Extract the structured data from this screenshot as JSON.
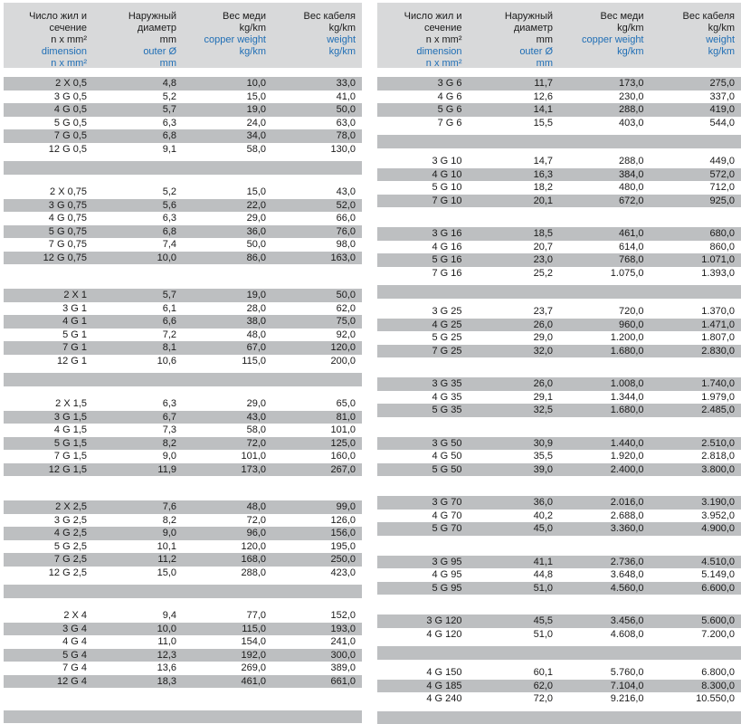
{
  "colors": {
    "row_band": "#bdbfc1",
    "header_band": "#d8d9da",
    "accent_blue": "#1f6eb5",
    "text_black": "#1a1a1a"
  },
  "header": {
    "columns": [
      {
        "ru": [
          "Число жил и",
          "сечение",
          "n x mm²"
        ],
        "en": [
          "dimension",
          "n x mm²"
        ]
      },
      {
        "ru": [
          "Наружный",
          "диаметр",
          "mm"
        ],
        "en": [
          "outer Ø",
          "mm"
        ]
      },
      {
        "ru": [
          "Вес меди",
          "kg/km"
        ],
        "en": [
          "copper weight",
          "kg/km"
        ]
      },
      {
        "ru": [
          "Вес кабеля",
          "kg/km"
        ],
        "en": [
          "weight",
          "kg/km"
        ]
      }
    ]
  },
  "column_names": [
    "dimension-cell",
    "outer-diameter-cell",
    "copper-weight-cell",
    "cable-weight-cell"
  ],
  "tables": [
    {
      "groups": [
        [
          [
            "2 X 0,5",
            "4,8",
            "10,0",
            "33,0"
          ],
          [
            "3 G 0,5",
            "5,2",
            "15,0",
            "41,0"
          ],
          [
            "4 G 0,5",
            "5,7",
            "19,0",
            "50,0"
          ],
          [
            "5 G 0,5",
            "6,3",
            "24,0",
            "63,0"
          ],
          [
            "7 G 0,5",
            "6,8",
            "34,0",
            "78,0"
          ],
          [
            "12 G 0,5",
            "9,1",
            "58,0",
            "130,0"
          ]
        ],
        [
          [
            "2 X 0,75",
            "5,2",
            "15,0",
            "43,0"
          ],
          [
            "3 G 0,75",
            "5,6",
            "22,0",
            "52,0"
          ],
          [
            "4 G 0,75",
            "6,3",
            "29,0",
            "66,0"
          ],
          [
            "5 G 0,75",
            "6,8",
            "36,0",
            "76,0"
          ],
          [
            "7 G 0,75",
            "7,4",
            "50,0",
            "98,0"
          ],
          [
            "12 G 0,75",
            "10,0",
            "86,0",
            "163,0"
          ]
        ],
        [
          [
            "2 X 1",
            "5,7",
            "19,0",
            "50,0"
          ],
          [
            "3 G 1",
            "6,1",
            "28,0",
            "62,0"
          ],
          [
            "4 G 1",
            "6,6",
            "38,0",
            "75,0"
          ],
          [
            "5 G 1",
            "7,2",
            "48,0",
            "92,0"
          ],
          [
            "7 G 1",
            "8,1",
            "67,0",
            "120,0"
          ],
          [
            "12 G 1",
            "10,6",
            "115,0",
            "200,0"
          ]
        ],
        [
          [
            "2 X 1,5",
            "6,3",
            "29,0",
            "65,0"
          ],
          [
            "3 G 1,5",
            "6,7",
            "43,0",
            "81,0"
          ],
          [
            "4 G 1,5",
            "7,3",
            "58,0",
            "101,0"
          ],
          [
            "5 G 1,5",
            "8,2",
            "72,0",
            "125,0"
          ],
          [
            "7 G 1,5",
            "9,0",
            "101,0",
            "160,0"
          ],
          [
            "12 G 1,5",
            "11,9",
            "173,0",
            "267,0"
          ]
        ],
        [
          [
            "2 X 2,5",
            "7,6",
            "48,0",
            "99,0"
          ],
          [
            "3 G 2,5",
            "8,2",
            "72,0",
            "126,0"
          ],
          [
            "4 G 2,5",
            "9,0",
            "96,0",
            "156,0"
          ],
          [
            "5 G 2,5",
            "10,1",
            "120,0",
            "195,0"
          ],
          [
            "7 G 2,5",
            "11,2",
            "168,0",
            "250,0"
          ],
          [
            "12 G 2,5",
            "15,0",
            "288,0",
            "423,0"
          ]
        ],
        [
          [
            "2 X 4",
            "9,4",
            "77,0",
            "152,0"
          ],
          [
            "3 G 4",
            "10,0",
            "115,0",
            "193,0"
          ],
          [
            "4 G 4",
            "11,0",
            "154,0",
            "241,0"
          ],
          [
            "5 G 4",
            "12,3",
            "192,0",
            "300,0"
          ],
          [
            "7 G 4",
            "13,6",
            "269,0",
            "389,0"
          ],
          [
            "12 G 4",
            "18,3",
            "461,0",
            "661,0"
          ]
        ]
      ]
    },
    {
      "groups": [
        [
          [
            "3 G 6",
            "11,7",
            "173,0",
            "275,0"
          ],
          [
            "4 G 6",
            "12,6",
            "230,0",
            "337,0"
          ],
          [
            "5 G 6",
            "14,1",
            "288,0",
            "419,0"
          ],
          [
            "7 G 6",
            "15,5",
            "403,0",
            "544,0"
          ]
        ],
        [
          [
            "3 G 10",
            "14,7",
            "288,0",
            "449,0"
          ],
          [
            "4 G 10",
            "16,3",
            "384,0",
            "572,0"
          ],
          [
            "5 G 10",
            "18,2",
            "480,0",
            "712,0"
          ],
          [
            "7 G 10",
            "20,1",
            "672,0",
            "925,0"
          ]
        ],
        [
          [
            "3 G 16",
            "18,5",
            "461,0",
            "680,0"
          ],
          [
            "4 G 16",
            "20,7",
            "614,0",
            "860,0"
          ],
          [
            "5 G 16",
            "23,0",
            "768,0",
            "1.071,0"
          ],
          [
            "7 G 16",
            "25,2",
            "1.075,0",
            "1.393,0"
          ]
        ],
        [
          [
            "3 G 25",
            "23,7",
            "720,0",
            "1.370,0"
          ],
          [
            "4 G 25",
            "26,0",
            "960,0",
            "1.471,0"
          ],
          [
            "5 G 25",
            "29,0",
            "1.200,0",
            "1.807,0"
          ],
          [
            "7 G 25",
            "32,0",
            "1.680,0",
            "2.830,0"
          ]
        ],
        [
          [
            "3 G 35",
            "26,0",
            "1.008,0",
            "1.740,0"
          ],
          [
            "4 G 35",
            "29,1",
            "1.344,0",
            "1.979,0"
          ],
          [
            "5 G 35",
            "32,5",
            "1.680,0",
            "2.485,0"
          ]
        ],
        [
          [
            "3 G 50",
            "30,9",
            "1.440,0",
            "2.510,0"
          ],
          [
            "4 G 50",
            "35,5",
            "1.920,0",
            "2.818,0"
          ],
          [
            "5 G 50",
            "39,0",
            "2.400,0",
            "3.800,0"
          ]
        ],
        [
          [
            "3 G 70",
            "36,0",
            "2.016,0",
            "3.190,0"
          ],
          [
            "4 G 70",
            "40,2",
            "2.688,0",
            "3.952,0"
          ],
          [
            "5 G 70",
            "45,0",
            "3.360,0",
            "4.900,0"
          ]
        ],
        [
          [
            "3 G 95",
            "41,1",
            "2.736,0",
            "4.510,0"
          ],
          [
            "4 G 95",
            "44,8",
            "3.648,0",
            "5.149,0"
          ],
          [
            "5 G 95",
            "51,0",
            "4.560,0",
            "6.600,0"
          ]
        ],
        [
          [
            "3 G 120",
            "45,5",
            "3.456,0",
            "5.600,0"
          ],
          [
            "4 G 120",
            "51,0",
            "4.608,0",
            "7.200,0"
          ]
        ],
        [
          [
            "4 G 150",
            "60,1",
            "5.760,0",
            "6.800,0"
          ],
          [
            "4 G 185",
            "62,0",
            "7.104,0",
            "8.300,0"
          ],
          [
            "4 G 240",
            "72,0",
            "9.216,0",
            "10.550,0"
          ]
        ]
      ]
    }
  ]
}
